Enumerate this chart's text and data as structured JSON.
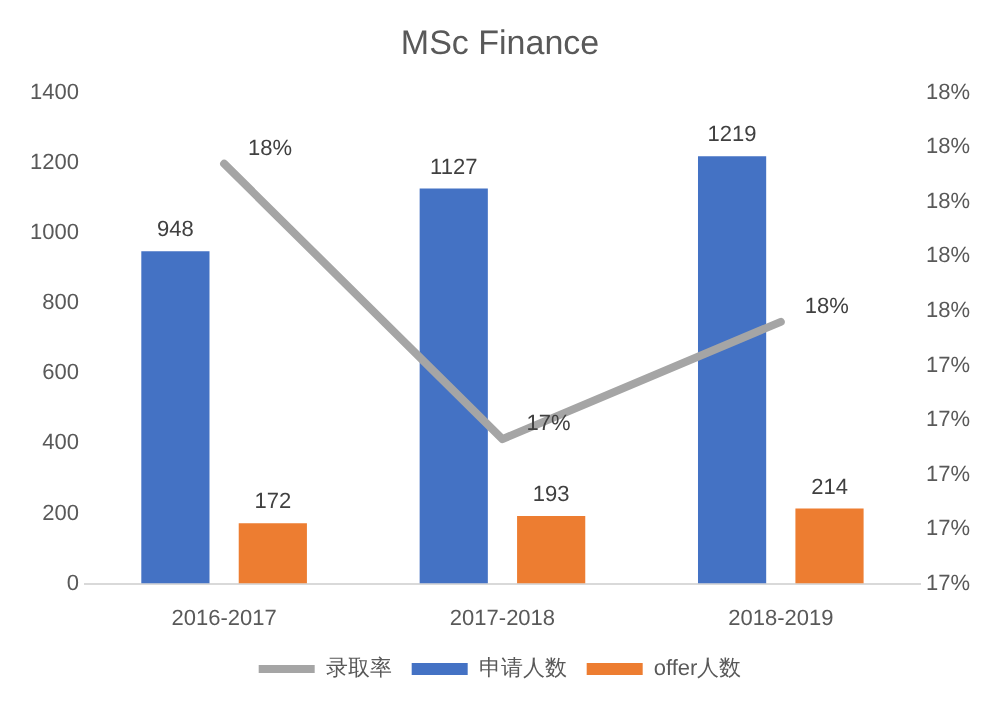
{
  "chart_data": {
    "type": "bar",
    "title": "MSc Finance",
    "categories": [
      "2016-2017",
      "2017-2018",
      "2018-2019"
    ],
    "series": [
      {
        "name": "申请人数",
        "color": "#4472c4",
        "values": [
          948,
          1127,
          1219
        ],
        "value_labels": [
          "948",
          "1127",
          "1219"
        ]
      },
      {
        "name": "offer人数",
        "color": "#ed7d31",
        "values": [
          172,
          193,
          214
        ],
        "value_labels": [
          "172",
          "193",
          "214"
        ]
      },
      {
        "name": "录取率",
        "type": "line",
        "axis": "y2",
        "color": "#a5a5a5",
        "values": [
          18.14,
          17.13,
          17.56
        ],
        "value_labels": [
          "18%",
          "17%",
          "18%"
        ],
        "marker": "none"
      }
    ],
    "ylim": [
      0,
      1400
    ],
    "yticks": [
      0,
      200,
      400,
      600,
      800,
      1000,
      1200,
      1400
    ],
    "y2lim": [
      16.6,
      18.4
    ],
    "y2ticks": [
      {
        "value": 16.6,
        "label": "17%"
      },
      {
        "value": 16.8,
        "label": "17%"
      },
      {
        "value": 17.0,
        "label": "17%"
      },
      {
        "value": 17.2,
        "label": "17%"
      },
      {
        "value": 17.4,
        "label": "17%"
      },
      {
        "value": 17.6,
        "label": "18%"
      },
      {
        "value": 17.8,
        "label": "18%"
      },
      {
        "value": 18.0,
        "label": "18%"
      },
      {
        "value": 18.2,
        "label": "18%"
      },
      {
        "value": 18.4,
        "label": "18%"
      }
    ],
    "grid": false,
    "legend": "bottom"
  }
}
